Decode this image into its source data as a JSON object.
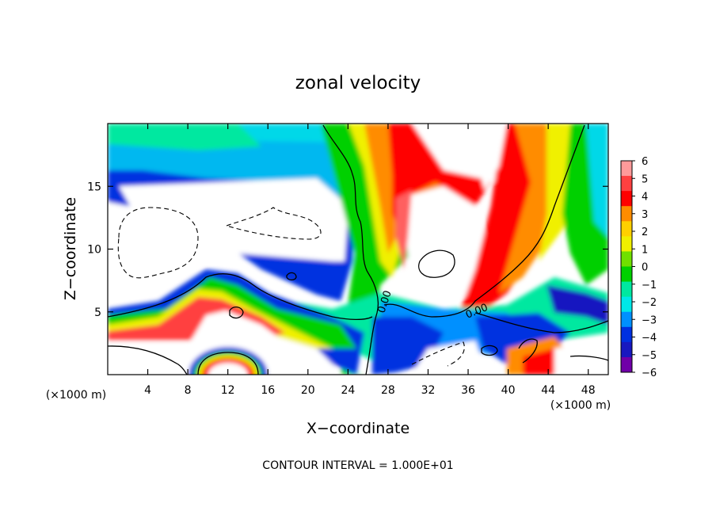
{
  "chart_data": {
    "type": "heatmap",
    "title": "zonal velocity",
    "xlabel": "X−coordinate",
    "ylabel": "Z−coordinate",
    "x_unit": "(×1000 m)",
    "y_unit": "(×1000 m)",
    "xlim": [
      0,
      50
    ],
    "ylim": [
      0,
      20
    ],
    "x_ticks": [
      4,
      8,
      12,
      16,
      20,
      24,
      28,
      32,
      36,
      40,
      44,
      48
    ],
    "y_ticks": [
      5,
      10,
      15
    ],
    "colorbar": {
      "ticks": [
        6,
        5,
        4,
        3,
        2,
        1,
        0,
        -1,
        -2,
        -3,
        -4,
        -5,
        -6
      ],
      "colors": [
        "#ff9a9a",
        "#ff4040",
        "#ff0000",
        "#ff8c00",
        "#ffd000",
        "#f0f000",
        "#70e000",
        "#00d000",
        "#00e8a0",
        "#00e8e8",
        "#0090ff",
        "#0030e0",
        "#1818c0",
        "#7000a8"
      ]
    },
    "contour_interval": "CONTOUR INTERVAL = 1.000E+01",
    "contour_labels": [
      "0.00",
      "0.00"
    ],
    "grid": false,
    "legend": "colorbar-right"
  }
}
